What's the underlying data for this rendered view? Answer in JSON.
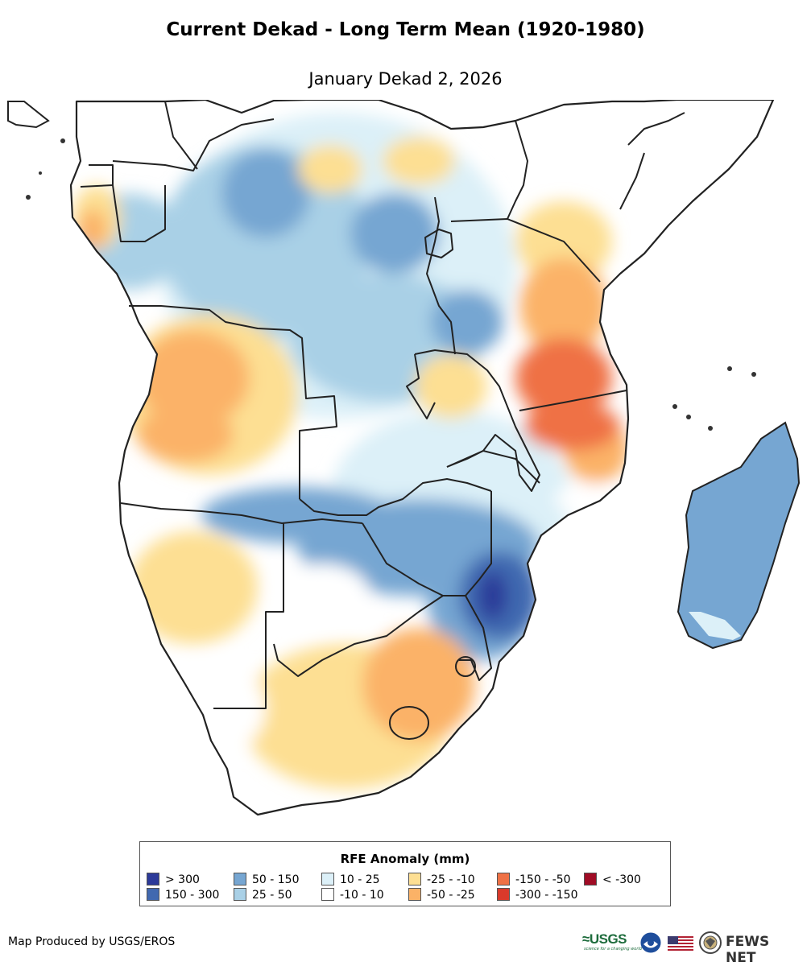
{
  "header": {
    "title": "Current Dekad - Long Term Mean (1920-1980)",
    "subtitle": "January Dekad 2, 2026"
  },
  "legend": {
    "title": "RFE Anomaly (mm)",
    "items": [
      {
        "label": "> 300",
        "color": "#2c3a99"
      },
      {
        "label": "150 - 300",
        "color": "#4169b0"
      },
      {
        "label": "50 - 150",
        "color": "#76a6d2"
      },
      {
        "label": "25 - 50",
        "color": "#a9d0e6"
      },
      {
        "label": "10 - 25",
        "color": "#dcf0f8"
      },
      {
        "label": "-10 - 10",
        "color": "#ffffff"
      },
      {
        "label": "-25 - -10",
        "color": "#fddf93"
      },
      {
        "label": "-50 - -25",
        "color": "#fbb267"
      },
      {
        "label": "-150 - -50",
        "color": "#ef7145"
      },
      {
        "label": "-300 - -150",
        "color": "#d93a2b"
      },
      {
        "label": "< -300",
        "color": "#a00c25"
      }
    ]
  },
  "footer": {
    "credit": "Map Produced by USGS/EROS",
    "usgs_logo_text": "USGS",
    "usgs_tagline": "science for a changing world",
    "fews_text": "FEWS NET"
  },
  "icons": [
    "usgs-logo",
    "noaa-logo-icon",
    "us-flag-icon",
    "state-dept-seal-icon"
  ]
}
